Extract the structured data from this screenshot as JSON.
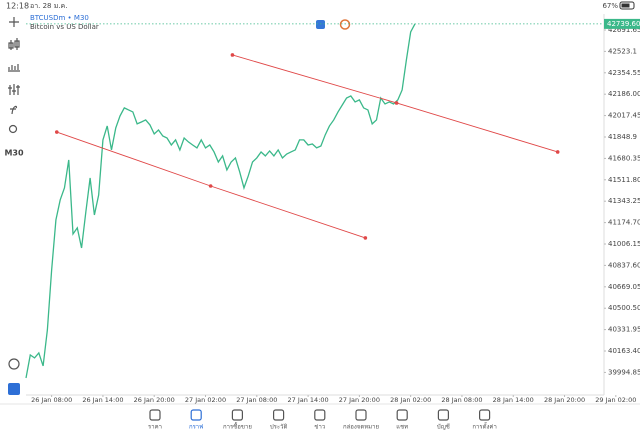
{
  "status_bar": {
    "time": "12:18",
    "date": "อา. 28 ม.ค.",
    "battery": "67%"
  },
  "toolbar": {
    "timeframe": "M30"
  },
  "chart_data": {
    "type": "line",
    "title": "BTCUSDm • M30",
    "subtitle": "Bitcoin vs US Dollar",
    "color": "#3bb88a",
    "x": [
      0,
      1,
      2,
      3,
      4,
      5,
      6,
      7,
      8,
      9,
      10,
      11,
      12,
      13,
      14,
      15,
      16,
      17,
      18,
      19,
      20,
      21,
      22,
      23,
      24,
      25,
      26,
      27,
      28,
      29,
      30,
      31,
      32,
      33,
      34,
      35,
      36,
      37,
      38,
      39,
      40,
      41,
      42,
      43,
      44,
      45,
      46,
      47,
      48,
      49,
      50,
      51,
      52,
      53,
      54,
      55,
      56,
      57,
      58,
      59,
      60,
      61,
      62,
      63,
      64,
      65,
      66,
      67,
      68,
      69,
      70,
      71,
      72,
      73,
      74,
      75,
      76,
      77,
      78,
      79,
      80,
      81,
      82,
      83,
      84,
      85,
      86,
      87,
      88,
      89,
      90,
      91
    ],
    "values": [
      39951,
      40132,
      40109,
      40148,
      40046,
      40329,
      40802,
      41196,
      41353,
      41448,
      41668,
      41085,
      41133,
      40975,
      41259,
      41526,
      41235,
      41392,
      41826,
      41936,
      41747,
      41920,
      42015,
      42078,
      42062,
      42046,
      41952,
      41967,
      41983,
      41944,
      41873,
      41904,
      41857,
      41841,
      41786,
      41826,
      41747,
      41841,
      41810,
      41786,
      41763,
      41826,
      41763,
      41786,
      41731,
      41652,
      41700,
      41589,
      41652,
      41684,
      41574,
      41448,
      41542,
      41652,
      41684,
      41731,
      41700,
      41739,
      41700,
      41747,
      41684,
      41715,
      41731,
      41747,
      41826,
      41826,
      41786,
      41794,
      41763,
      41778,
      41865,
      41936,
      41983,
      42046,
      42101,
      42156,
      42172,
      42125,
      42141,
      42078,
      42062,
      41952,
      41983,
      42156,
      42109,
      42125,
      42109,
      42141,
      42219,
      42456,
      42676,
      42739.6
    ],
    "last_price": {
      "value": 42739.6,
      "label": "42739.60"
    },
    "xlim": [
      0,
      135
    ],
    "ylim": [
      39817,
      42786
    ],
    "xticks": [
      {
        "value": 6,
        "label": "26 Jan 08:00"
      },
      {
        "value": 18,
        "label": "26 Jan 14:00"
      },
      {
        "value": 30,
        "label": "26 Jan 20:00"
      },
      {
        "value": 42,
        "label": "27 Jan 02:00"
      },
      {
        "value": 54,
        "label": "27 Jan 08:00"
      },
      {
        "value": 66,
        "label": "27 Jan 14:00"
      },
      {
        "value": 78,
        "label": "27 Jan 20:00"
      },
      {
        "value": 90,
        "label": "28 Jan 02:00"
      },
      {
        "value": 102,
        "label": "28 Jan 08:00"
      },
      {
        "value": 114,
        "label": "28 Jan 14:00"
      },
      {
        "value": 126,
        "label": "28 Jan 20:00"
      },
      {
        "value": 138,
        "label": "29 Jan 02:00"
      }
    ],
    "yticks": [
      42691.65,
      42523.1,
      42354.55,
      {
        "value": 42186,
        "label": "42186.00"
      },
      42017.45,
      41848.9,
      41680.35,
      {
        "value": 41511.8,
        "label": "41511.80"
      },
      41343.25,
      {
        "value": 41174.7,
        "label": "41174.70"
      },
      41006.15,
      {
        "value": 40837.6,
        "label": "40837.60"
      },
      40669.05,
      {
        "value": 40500.5,
        "label": "40500.50"
      },
      40331.95,
      {
        "value": 40163.4,
        "label": "40163.40"
      },
      39994.85
    ],
    "trendline_color": "#e04848",
    "trendlines": [
      {
        "x": [
          7.2,
          43.2,
          79.4
        ],
        "y": [
          41888,
          41463,
          41054
        ]
      },
      {
        "x": [
          48.3,
          86.7,
          124.4
        ],
        "y": [
          42495,
          42117,
          41731
        ]
      }
    ],
    "grid": false
  },
  "bottom_nav": {
    "items": [
      "ราคา",
      "กราฟ",
      "การซื้อขาย",
      "ประวัติ",
      "ข่าว",
      "กล่องจดหมาย",
      "แชท",
      "บัญชี",
      "การตั้งค่า"
    ],
    "active": 1
  }
}
